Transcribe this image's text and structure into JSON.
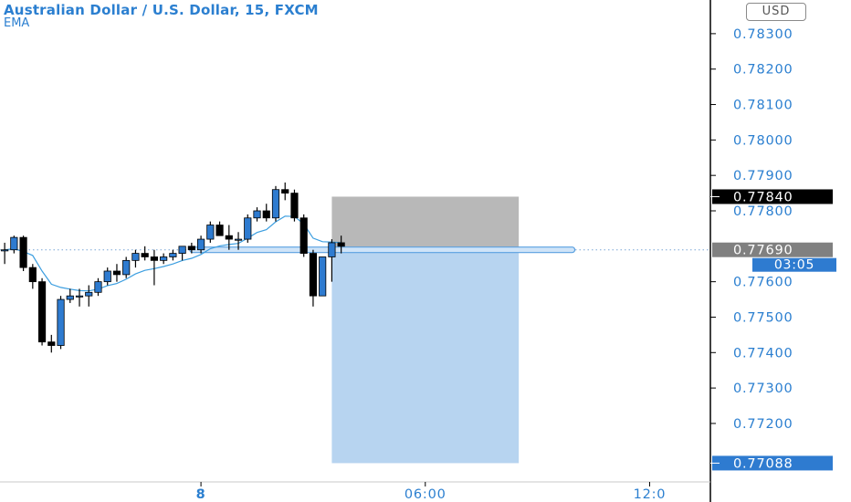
{
  "header": {
    "title": "Australian Dollar / U.S. Dollar, 15, FXCM",
    "indicator": "EMA"
  },
  "currency_button": "USD",
  "colors": {
    "up": "#2e7bd0",
    "down": "#000000",
    "ema": "#3c9ee0",
    "accent_text": "#2b7fd0",
    "stop_zone": "#b4b4b4",
    "target_zone": "#b7d4f0",
    "current_price_badge": "#808080",
    "stop_badge": "#000000",
    "target_badge": "#2e7bd0"
  },
  "chart_data": {
    "type": "candlestick",
    "title": "Australian Dollar / U.S. Dollar, 15, FXCM",
    "y_axis": {
      "ticks": [
        "0.78300",
        "0.78200",
        "0.78100",
        "0.78000",
        "0.77900",
        "0.77800",
        "0.77600",
        "0.77500",
        "0.77400",
        "0.77300",
        "0.77200"
      ],
      "range": [
        0.77035,
        0.78395
      ],
      "position": "right"
    },
    "x_axis": {
      "ticks": [
        {
          "label": "8",
          "bar": 21
        },
        {
          "label": "06:00",
          "bar": 45
        },
        {
          "label": "12:0",
          "bar": 69
        }
      ],
      "range": [
        -0.5,
        75.5
      ]
    },
    "candles": [
      [
        0.7769,
        0.7771,
        0.7765,
        0.7769
      ],
      [
        0.7769,
        0.7773,
        0.7768,
        0.77725
      ],
      [
        0.77725,
        0.7773,
        0.7763,
        0.7764
      ],
      [
        0.7764,
        0.7765,
        0.7758,
        0.776
      ],
      [
        0.776,
        0.7761,
        0.7742,
        0.7743
      ],
      [
        0.7743,
        0.7745,
        0.774,
        0.7742
      ],
      [
        0.7742,
        0.7756,
        0.7741,
        0.7755
      ],
      [
        0.7755,
        0.7758,
        0.7754,
        0.7756
      ],
      [
        0.7756,
        0.7758,
        0.7753,
        0.7756
      ],
      [
        0.7756,
        0.7759,
        0.7753,
        0.7757
      ],
      [
        0.7757,
        0.7761,
        0.7756,
        0.776
      ],
      [
        0.776,
        0.7764,
        0.7759,
        0.7763
      ],
      [
        0.7763,
        0.7765,
        0.776,
        0.7762
      ],
      [
        0.7762,
        0.7767,
        0.7761,
        0.7766
      ],
      [
        0.7766,
        0.7769,
        0.7764,
        0.7768
      ],
      [
        0.7768,
        0.777,
        0.7766,
        0.7767
      ],
      [
        0.7767,
        0.7769,
        0.7759,
        0.7766
      ],
      [
        0.7766,
        0.7768,
        0.7765,
        0.7767
      ],
      [
        0.7767,
        0.7769,
        0.7766,
        0.7768
      ],
      [
        0.7768,
        0.777,
        0.7766,
        0.777
      ],
      [
        0.777,
        0.7771,
        0.7768,
        0.7769
      ],
      [
        0.7769,
        0.7773,
        0.7768,
        0.7772
      ],
      [
        0.7772,
        0.7777,
        0.7771,
        0.7776
      ],
      [
        0.7776,
        0.7777,
        0.7773,
        0.7773
      ],
      [
        0.7773,
        0.7776,
        0.7769,
        0.7772
      ],
      [
        0.7772,
        0.7774,
        0.7769,
        0.7772
      ],
      [
        0.7772,
        0.7779,
        0.7771,
        0.7778
      ],
      [
        0.7778,
        0.7781,
        0.7777,
        0.778
      ],
      [
        0.778,
        0.7782,
        0.7777,
        0.7778
      ],
      [
        0.7778,
        0.7787,
        0.7777,
        0.7786
      ],
      [
        0.7786,
        0.7788,
        0.7783,
        0.7785
      ],
      [
        0.7785,
        0.7786,
        0.7777,
        0.7778
      ],
      [
        0.7778,
        0.7779,
        0.7767,
        0.7768
      ],
      [
        0.7768,
        0.7769,
        0.7753,
        0.7756
      ],
      [
        0.7756,
        0.7767,
        0.7756,
        0.7767
      ],
      [
        0.7767,
        0.7772,
        0.776,
        0.7771
      ],
      [
        0.7771,
        0.7773,
        0.7768,
        0.777
      ]
    ],
    "ema": [
      0.7769,
      0.77693,
      0.77685,
      0.77674,
      0.7763,
      0.77593,
      0.77584,
      0.77579,
      0.77575,
      0.77574,
      0.77579,
      0.77589,
      0.77595,
      0.77607,
      0.77622,
      0.77632,
      0.77637,
      0.77643,
      0.7765,
      0.7766,
      0.77666,
      0.77677,
      0.77693,
      0.77701,
      0.77705,
      0.77708,
      0.77723,
      0.77739,
      0.77747,
      0.77769,
      0.77785,
      0.77784,
      0.77763,
      0.77723,
      0.77713,
      0.77712,
      0.7771
    ],
    "horizontal_line": {
      "price": 0.7769,
      "from_bar": 20,
      "to_bar": 61
    },
    "position": {
      "type": "short",
      "entry": 0.7769,
      "stop": 0.7784,
      "target": 0.77088,
      "from_bar": 35,
      "to_bar": 55
    },
    "price_labels": {
      "current": {
        "value": "0.77690",
        "countdown": "03:05"
      },
      "stop": "0.77840",
      "target": "0.77088"
    }
  }
}
